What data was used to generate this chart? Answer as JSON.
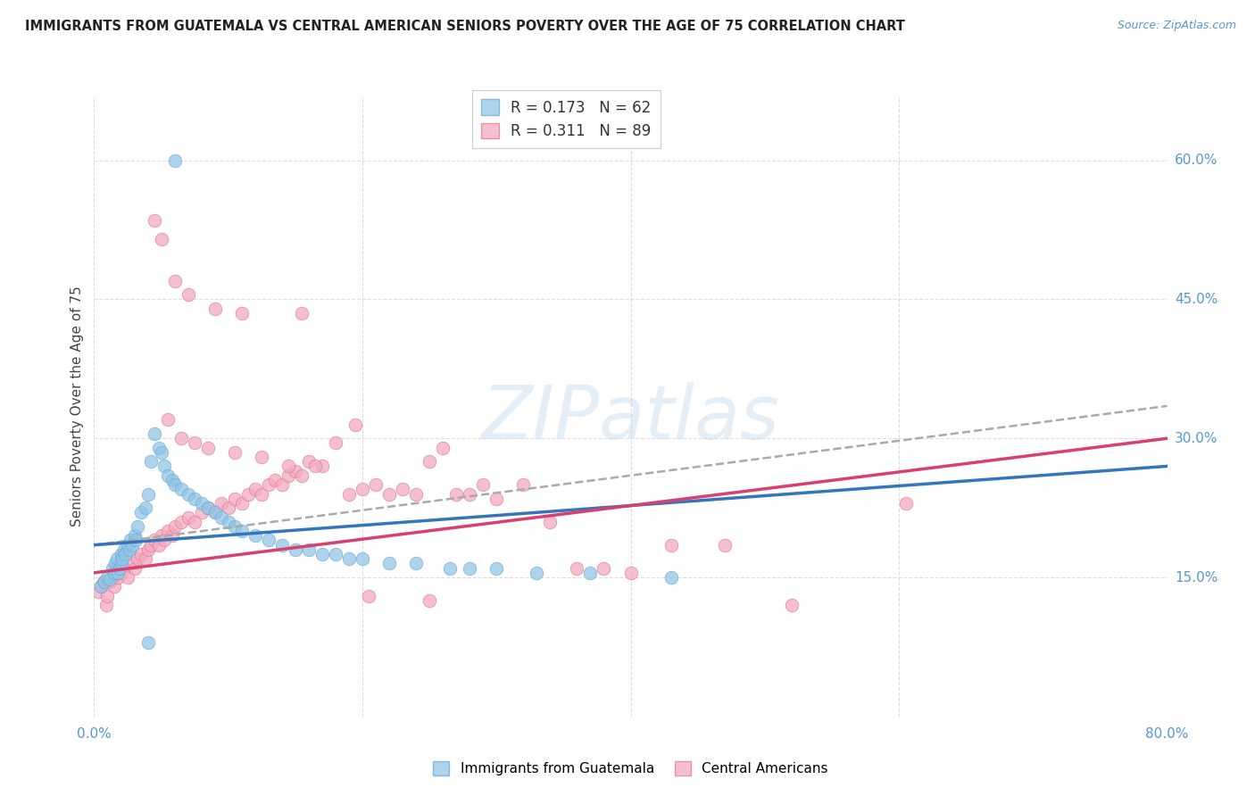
{
  "title": "IMMIGRANTS FROM GUATEMALA VS CENTRAL AMERICAN SENIORS POVERTY OVER THE AGE OF 75 CORRELATION CHART",
  "source": "Source: ZipAtlas.com",
  "ylabel": "Seniors Poverty Over the Age of 75",
  "xmin": 0.0,
  "xmax": 80.0,
  "ymin": 0.0,
  "ymax": 67.0,
  "ytick_values": [
    15.0,
    30.0,
    45.0,
    60.0
  ],
  "xtick_values": [
    0.0,
    20.0,
    40.0,
    60.0,
    80.0
  ],
  "legend1_R": "0.173",
  "legend1_N": "62",
  "legend2_R": "0.311",
  "legend2_N": "89",
  "legend1_label": "Immigrants from Guatemala",
  "legend2_label": "Central Americans",
  "color_blue": "#92C5E8",
  "color_blue_edge": "#6aabd2",
  "color_pink": "#F4AABF",
  "color_pink_edge": "#e07898",
  "color_trend_blue": "#3575bb",
  "color_trend_dash": "#aaaaaa",
  "color_trend_pink": "#d94070",
  "watermark_text": "ZIPatlas",
  "watermark_color": "#b8d4ea",
  "axis_color": "#5599cc",
  "title_color": "#222222",
  "grid_color": "#dddddd",
  "blue_x": [
    0.5,
    0.8,
    1.0,
    1.2,
    1.4,
    1.5,
    1.6,
    1.7,
    1.8,
    1.9,
    2.0,
    2.0,
    2.1,
    2.2,
    2.3,
    2.5,
    2.6,
    2.7,
    2.8,
    3.0,
    3.1,
    3.2,
    3.5,
    3.8,
    4.0,
    4.2,
    4.5,
    4.8,
    5.0,
    5.2,
    5.5,
    5.8,
    6.0,
    6.5,
    7.0,
    7.5,
    8.0,
    8.5,
    9.0,
    9.5,
    10.0,
    10.5,
    11.0,
    12.0,
    13.0,
    14.0,
    15.0,
    16.0,
    17.0,
    18.0,
    19.0,
    20.0,
    22.0,
    24.0,
    26.5,
    28.0,
    30.0,
    33.0,
    37.0,
    43.0,
    6.0,
    4.0
  ],
  "blue_y": [
    14.0,
    14.5,
    15.0,
    14.8,
    16.0,
    15.5,
    16.5,
    17.0,
    15.5,
    16.0,
    16.5,
    17.5,
    17.0,
    18.0,
    17.5,
    18.5,
    18.0,
    19.0,
    18.5,
    19.5,
    19.0,
    20.5,
    22.0,
    22.5,
    24.0,
    27.5,
    30.5,
    29.0,
    28.5,
    27.0,
    26.0,
    25.5,
    25.0,
    24.5,
    24.0,
    23.5,
    23.0,
    22.5,
    22.0,
    21.5,
    21.0,
    20.5,
    20.0,
    19.5,
    19.0,
    18.5,
    18.0,
    18.0,
    17.5,
    17.5,
    17.0,
    17.0,
    16.5,
    16.5,
    16.0,
    16.0,
    16.0,
    15.5,
    15.5,
    15.0,
    60.0,
    8.0
  ],
  "pink_x": [
    0.3,
    0.5,
    0.7,
    0.9,
    1.0,
    1.2,
    1.4,
    1.5,
    1.6,
    1.8,
    2.0,
    2.2,
    2.5,
    2.8,
    3.0,
    3.2,
    3.5,
    3.8,
    4.0,
    4.2,
    4.5,
    4.8,
    5.0,
    5.2,
    5.5,
    5.8,
    6.0,
    6.5,
    7.0,
    7.5,
    8.0,
    8.5,
    9.0,
    9.5,
    10.0,
    10.5,
    11.0,
    11.5,
    12.0,
    12.5,
    13.0,
    13.5,
    14.0,
    14.5,
    15.0,
    15.5,
    16.0,
    17.0,
    18.0,
    19.0,
    20.0,
    21.0,
    22.0,
    23.0,
    24.0,
    25.0,
    26.0,
    27.0,
    28.0,
    29.0,
    30.0,
    32.0,
    34.0,
    36.0,
    38.0,
    40.0,
    43.0,
    47.0,
    52.0,
    60.5,
    5.5,
    6.5,
    7.5,
    8.5,
    10.5,
    12.5,
    14.5,
    16.5,
    19.5,
    4.5,
    5.0,
    6.0,
    7.0,
    9.0,
    11.0,
    15.5,
    20.5,
    25.0
  ],
  "pink_y": [
    13.5,
    14.0,
    14.5,
    12.0,
    13.0,
    14.5,
    15.0,
    14.0,
    15.5,
    15.0,
    15.5,
    16.0,
    15.0,
    16.5,
    16.0,
    17.0,
    17.5,
    17.0,
    18.0,
    18.5,
    19.0,
    18.5,
    19.5,
    19.0,
    20.0,
    19.5,
    20.5,
    21.0,
    21.5,
    21.0,
    22.0,
    22.5,
    22.0,
    23.0,
    22.5,
    23.5,
    23.0,
    24.0,
    24.5,
    24.0,
    25.0,
    25.5,
    25.0,
    26.0,
    26.5,
    26.0,
    27.5,
    27.0,
    29.5,
    24.0,
    24.5,
    25.0,
    24.0,
    24.5,
    24.0,
    27.5,
    29.0,
    24.0,
    24.0,
    25.0,
    23.5,
    25.0,
    21.0,
    16.0,
    16.0,
    15.5,
    18.5,
    18.5,
    12.0,
    23.0,
    32.0,
    30.0,
    29.5,
    29.0,
    28.5,
    28.0,
    27.0,
    27.0,
    31.5,
    53.5,
    51.5,
    47.0,
    45.5,
    44.0,
    43.5,
    43.5,
    13.0,
    12.5
  ],
  "blue_trend_start_y": 18.5,
  "blue_trend_end_y": 27.0,
  "pink_trend_start_y": 15.5,
  "pink_trend_end_y": 30.0,
  "dash_trend_start_y": 18.5,
  "dash_trend_end_y": 33.5
}
